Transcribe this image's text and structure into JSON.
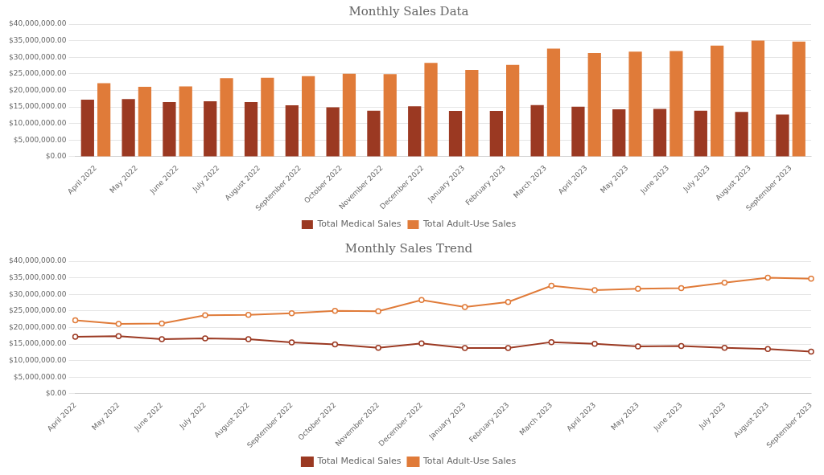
{
  "chart_data": [
    {
      "type": "bar",
      "title": "Monthly Sales Data",
      "categories": [
        "April 2022",
        "May 2022",
        "June 2022",
        "July 2022",
        "August 2022",
        "September 2022",
        "October 2022",
        "November 2022",
        "December 2022",
        "January 2023",
        "February 2023",
        "March 2023",
        "April 2023",
        "May 2023",
        "June 2023",
        "July 2023",
        "August 2023",
        "September 2023"
      ],
      "series": [
        {
          "name": "Total Medical Sales",
          "color": "#9B3922",
          "values": [
            17200000,
            17400000,
            16500000,
            16700000,
            16500000,
            15500000,
            14900000,
            13900000,
            15200000,
            13800000,
            13800000,
            15600000,
            15100000,
            14300000,
            14400000,
            13900000,
            13500000,
            12700000
          ]
        },
        {
          "name": "Total Adult-Use Sales",
          "color": "#E07B39",
          "values": [
            22200000,
            21100000,
            21200000,
            23700000,
            23800000,
            24300000,
            25000000,
            24900000,
            28300000,
            26200000,
            27700000,
            32600000,
            31300000,
            31700000,
            31900000,
            33500000,
            35000000,
            34700000
          ]
        }
      ],
      "ylim": [
        0,
        40000000
      ],
      "yticks": [
        {
          "value": 0,
          "label": "$0.00"
        },
        {
          "value": 5000000,
          "label": "$5,000,000.00"
        },
        {
          "value": 10000000,
          "label": "$10,000,000.00"
        },
        {
          "value": 15000000,
          "label": "$15,000,000.00"
        },
        {
          "value": 20000000,
          "label": "$20,000,000.00"
        },
        {
          "value": 25000000,
          "label": "$25,000,000.00"
        },
        {
          "value": 30000000,
          "label": "$30,000,000.00"
        },
        {
          "value": 35000000,
          "label": "$35,000,000.00"
        },
        {
          "value": 40000000,
          "label": "$40,000,000.00"
        }
      ],
      "grid": true,
      "legend": "bottom"
    },
    {
      "type": "line",
      "title": "Monthly Sales Trend",
      "categories": [
        "April 2022",
        "May 2022",
        "June 2022",
        "July 2022",
        "August 2022",
        "September 2022",
        "October 2022",
        "November 2022",
        "December 2022",
        "January 2023",
        "February 2023",
        "March 2023",
        "April 2023",
        "May 2023",
        "June 2023",
        "July 2023",
        "August 2023",
        "September 2023"
      ],
      "series": [
        {
          "name": "Total Medical Sales",
          "color": "#9B3922",
          "values": [
            17200000,
            17400000,
            16500000,
            16700000,
            16500000,
            15500000,
            14900000,
            13900000,
            15200000,
            13800000,
            13800000,
            15600000,
            15100000,
            14300000,
            14400000,
            13900000,
            13500000,
            12700000
          ]
        },
        {
          "name": "Total Adult-Use Sales",
          "color": "#E07B39",
          "values": [
            22200000,
            21100000,
            21200000,
            23700000,
            23800000,
            24300000,
            25000000,
            24900000,
            28300000,
            26200000,
            27700000,
            32600000,
            31300000,
            31700000,
            31900000,
            33500000,
            35000000,
            34700000
          ]
        }
      ],
      "ylim": [
        0,
        40000000
      ],
      "yticks": [
        {
          "value": 0,
          "label": "$0.00"
        },
        {
          "value": 5000000,
          "label": "$5,000,000.00"
        },
        {
          "value": 10000000,
          "label": "$10,000,000.00"
        },
        {
          "value": 15000000,
          "label": "$15,000,000.00"
        },
        {
          "value": 20000000,
          "label": "$20,000,000.00"
        },
        {
          "value": 25000000,
          "label": "$25,000,000.00"
        },
        {
          "value": 30000000,
          "label": "$30,000,000.00"
        },
        {
          "value": 35000000,
          "label": "$35,000,000.00"
        },
        {
          "value": 40000000,
          "label": "$40,000,000.00"
        }
      ],
      "grid": true,
      "legend": "bottom",
      "marker": "circle"
    }
  ]
}
